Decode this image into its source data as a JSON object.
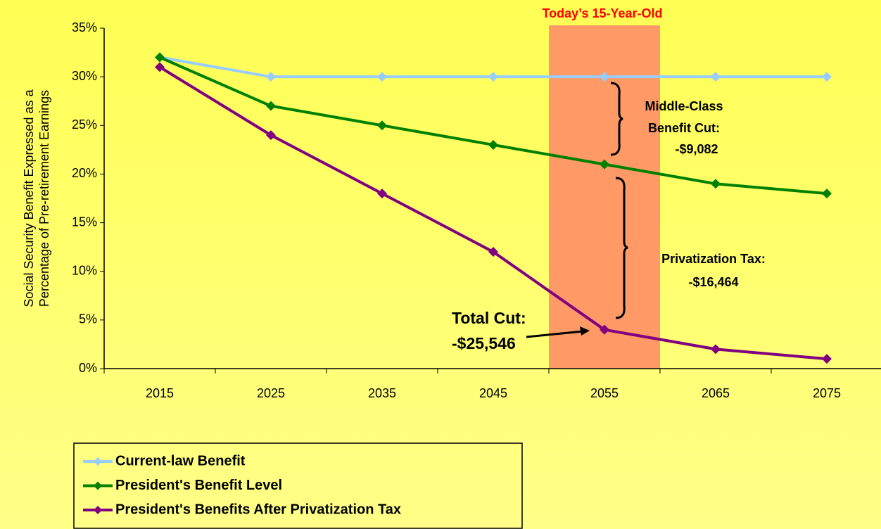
{
  "chart_data": {
    "type": "line",
    "title": "Today’s 15-Year-Old",
    "y_label": [
      "Social Security Benefit Expressed as a",
      "Percentage of Pre-retirement Earnings"
    ],
    "categories": [
      "2015",
      "2025",
      "2035",
      "2045",
      "2055",
      "2065",
      "2075"
    ],
    "series": [
      {
        "name": "Current-law Benefit",
        "color": "#99ccff",
        "values": [
          32,
          30,
          30,
          30,
          30,
          30,
          30
        ]
      },
      {
        "name": "President's Benefit Level",
        "color": "#008000",
        "values": [
          32,
          27,
          25,
          23,
          21,
          19,
          18
        ]
      },
      {
        "name": "President's Benefits After Privatization Tax",
        "color": "#800080",
        "values": [
          31,
          24,
          18,
          12,
          4,
          2,
          1
        ]
      }
    ],
    "ylim": [
      0,
      35
    ],
    "yticks": [
      {
        "value": 0,
        "label": "0%"
      },
      {
        "value": 5,
        "label": "5%"
      },
      {
        "value": 10,
        "label": "10%"
      },
      {
        "value": 15,
        "label": "15%"
      },
      {
        "value": 20,
        "label": "20%"
      },
      {
        "value": 25,
        "label": "25%"
      },
      {
        "value": 30,
        "label": "30%"
      },
      {
        "value": 35,
        "label": "35%"
      }
    ],
    "grid": false,
    "annotations": [
      {
        "lines": [
          "Middle-Class",
          "Benefit Cut:",
          "-$9,082"
        ]
      },
      {
        "lines": [
          "Privatization Tax:",
          "-$16,464"
        ]
      },
      {
        "lines": [
          "Total Cut:",
          "-$25,546"
        ]
      }
    ]
  }
}
